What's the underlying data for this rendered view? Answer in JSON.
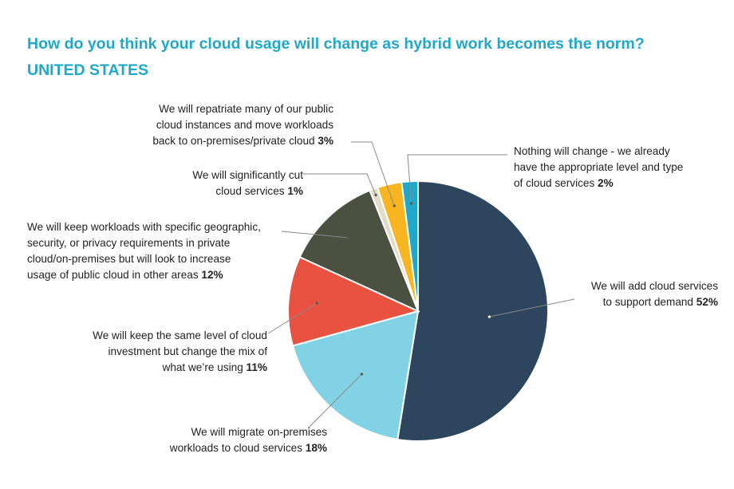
{
  "chart_data": {
    "type": "pie",
    "title": "How do you think your cloud usage will change as hybrid work becomes the norm?",
    "subtitle": "UNITED STATES",
    "slices": [
      {
        "label_lines": [
          "We will add cloud services",
          "to support demand"
        ],
        "value": 52,
        "value_text": "52%",
        "color": "#2d465e"
      },
      {
        "label_lines": [
          "We will migrate on-premises",
          "workloads to cloud services"
        ],
        "value": 18,
        "value_text": "18%",
        "color": "#82d2e6"
      },
      {
        "label_lines": [
          "We will keep the same level of cloud",
          "investment but change the mix of",
          "what we’re using"
        ],
        "value": 11,
        "value_text": "11%",
        "color": "#e95140"
      },
      {
        "label_lines": [
          "We will keep workloads with specific geographic,",
          "security, or privacy requirements in private",
          "cloud/on-premises but will look to increase",
          "usage of public cloud in other areas"
        ],
        "value": 12,
        "value_text": "12%",
        "color": "#4b5040"
      },
      {
        "label_lines": [
          "We will significantly cut",
          "cloud services"
        ],
        "value": 1,
        "value_text": "1%",
        "color": "#e1ddc6"
      },
      {
        "label_lines": [
          "We will repatriate many of our public",
          "cloud instances and move workloads",
          "back to on-premises/private cloud"
        ],
        "value": 3,
        "value_text": "3%",
        "color": "#f7b61f"
      },
      {
        "label_lines": [
          "Nothing will change - we already",
          "have the appropriate level and type",
          "of cloud services"
        ],
        "value": 2,
        "value_text": "2%",
        "color": "#1fa8c9"
      }
    ]
  }
}
